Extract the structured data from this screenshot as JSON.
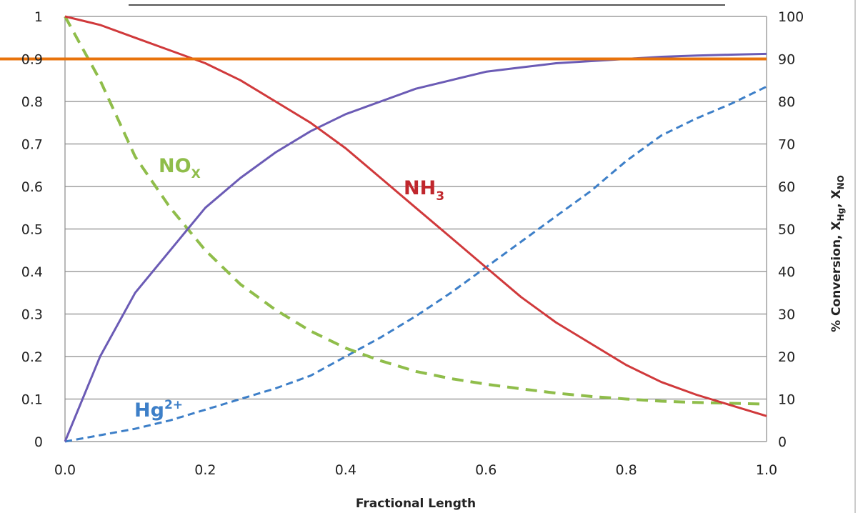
{
  "chart_data": {
    "type": "line",
    "title": "",
    "xlabel": "Fractional Length",
    "ylabel_left": "",
    "ylabel_right": "% Conversion, X_Hg, X_NO",
    "ylabel_right_parts": {
      "main": "% Conversion, X",
      "sub1": "Hg",
      "comma": ", X",
      "sub2": "NO"
    },
    "xlim": [
      0,
      1.0
    ],
    "ylim_left": [
      0,
      1
    ],
    "ylim_right": [
      0,
      100
    ],
    "x_ticks": [
      "0.0",
      "0.2",
      "0.4",
      "0.6",
      "0.8",
      "1.0"
    ],
    "y_left_ticks": [
      "0",
      "0.1",
      "0.2",
      "0.3",
      "0.4",
      "0.5",
      "0.6",
      "0.7",
      "0.8",
      "0.9",
      "1"
    ],
    "y_right_ticks": [
      "0",
      "10",
      "20",
      "30",
      "40",
      "50",
      "60",
      "70",
      "80",
      "90",
      "100"
    ],
    "grid": "horizontal",
    "reference_line": {
      "axis": "left",
      "y": 0.9,
      "color": "#e8730c"
    },
    "series": [
      {
        "label_main": "NH",
        "label_sub": "3",
        "axis": "left",
        "color": "#d0393b",
        "style": "solid",
        "x": [
          0,
          0.05,
          0.1,
          0.15,
          0.2,
          0.25,
          0.3,
          0.35,
          0.4,
          0.45,
          0.5,
          0.55,
          0.6,
          0.65,
          0.7,
          0.75,
          0.8,
          0.85,
          0.9,
          0.95,
          1.0
        ],
        "y": [
          1.0,
          0.98,
          0.95,
          0.92,
          0.89,
          0.85,
          0.8,
          0.75,
          0.69,
          0.62,
          0.55,
          0.48,
          0.41,
          0.34,
          0.28,
          0.23,
          0.18,
          0.14,
          0.11,
          0.085,
          0.06
        ]
      },
      {
        "label_main": "",
        "label_sub": "",
        "axis": "left",
        "color": "#6b5bb5",
        "style": "solid",
        "x": [
          0,
          0.05,
          0.1,
          0.15,
          0.2,
          0.25,
          0.3,
          0.35,
          0.4,
          0.45,
          0.5,
          0.55,
          0.6,
          0.65,
          0.7,
          0.75,
          0.8,
          0.85,
          0.9,
          0.95,
          1.0
        ],
        "y": [
          0,
          0.2,
          0.35,
          0.45,
          0.55,
          0.62,
          0.68,
          0.73,
          0.77,
          0.8,
          0.83,
          0.85,
          0.87,
          0.88,
          0.89,
          0.895,
          0.9,
          0.905,
          0.908,
          0.91,
          0.912
        ]
      },
      {
        "label_main": "NO",
        "label_sub": "X",
        "axis": "left",
        "color": "#8fbd4a",
        "style": "dashed",
        "x": [
          0,
          0.05,
          0.1,
          0.15,
          0.2,
          0.25,
          0.3,
          0.35,
          0.4,
          0.45,
          0.5,
          0.55,
          0.6,
          0.65,
          0.7,
          0.75,
          0.8,
          0.85,
          0.9,
          0.95,
          1.0
        ],
        "y": [
          1.0,
          0.85,
          0.67,
          0.55,
          0.45,
          0.37,
          0.31,
          0.26,
          0.22,
          0.19,
          0.165,
          0.148,
          0.135,
          0.124,
          0.114,
          0.106,
          0.1,
          0.095,
          0.092,
          0.09,
          0.088
        ]
      },
      {
        "label_main": "Hg",
        "label_sup": "2+",
        "axis": "left",
        "color": "#3d7fc8",
        "style": "dashed",
        "x": [
          0,
          0.05,
          0.1,
          0.15,
          0.2,
          0.25,
          0.3,
          0.35,
          0.4,
          0.45,
          0.5,
          0.55,
          0.6,
          0.65,
          0.7,
          0.75,
          0.8,
          0.85,
          0.9,
          0.95,
          1.0
        ],
        "y": [
          0,
          0.015,
          0.03,
          0.05,
          0.075,
          0.1,
          0.125,
          0.155,
          0.2,
          0.245,
          0.295,
          0.35,
          0.41,
          0.47,
          0.53,
          0.59,
          0.66,
          0.72,
          0.76,
          0.795,
          0.835
        ]
      }
    ]
  }
}
